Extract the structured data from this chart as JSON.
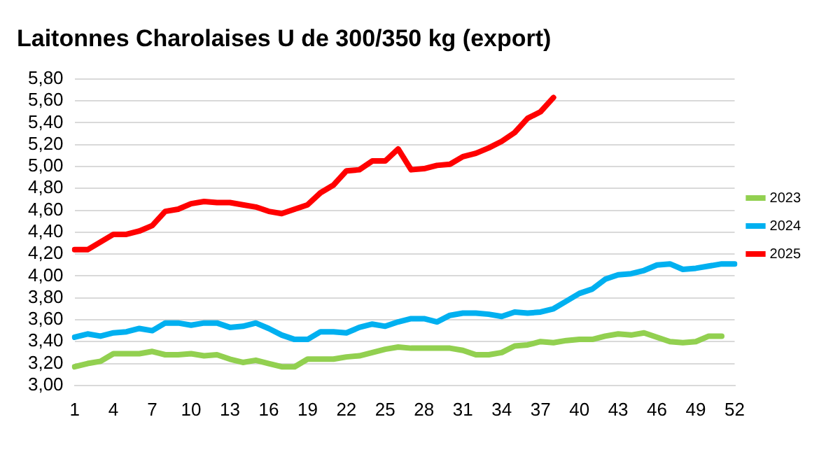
{
  "chart_data": {
    "type": "line",
    "title": "Laitonnes Charolaises U de 300/350 kg (export)",
    "categories": [
      "1",
      null,
      null,
      "4",
      null,
      null,
      "7",
      null,
      null,
      "10",
      null,
      null,
      "13",
      null,
      null,
      "16",
      null,
      null,
      "19",
      null,
      null,
      "22",
      null,
      null,
      "25",
      null,
      null,
      "28",
      null,
      null,
      "31",
      null,
      null,
      "34",
      null,
      null,
      "37",
      null,
      null,
      "40",
      null,
      null,
      "43",
      null,
      null,
      "46",
      null,
      null,
      "49",
      null,
      null,
      "52"
    ],
    "series": [
      {
        "name": "2023",
        "color": "#92d050",
        "values": [
          3.17,
          3.2,
          3.22,
          3.29,
          3.29,
          3.29,
          3.31,
          3.28,
          3.28,
          3.29,
          3.27,
          3.28,
          3.24,
          3.21,
          3.23,
          3.2,
          3.17,
          3.17,
          3.24,
          3.24,
          3.24,
          3.26,
          3.27,
          3.3,
          3.33,
          3.35,
          3.34,
          3.34,
          3.34,
          3.34,
          3.32,
          3.28,
          3.28,
          3.3,
          3.36,
          3.37,
          3.4,
          3.39,
          3.41,
          3.42,
          3.42,
          3.45,
          3.47,
          3.46,
          3.48,
          3.44,
          3.4,
          3.39,
          3.4,
          3.45,
          3.45,
          null
        ]
      },
      {
        "name": "2024",
        "color": "#00b0f0",
        "values": [
          3.44,
          3.47,
          3.45,
          3.48,
          3.49,
          3.52,
          3.5,
          3.57,
          3.57,
          3.55,
          3.57,
          3.57,
          3.53,
          3.54,
          3.57,
          3.52,
          3.46,
          3.42,
          3.42,
          3.49,
          3.49,
          3.48,
          3.53,
          3.56,
          3.54,
          3.58,
          3.61,
          3.61,
          3.58,
          3.64,
          3.66,
          3.66,
          3.65,
          3.63,
          3.67,
          3.66,
          3.67,
          3.7,
          3.77,
          3.84,
          3.88,
          3.97,
          4.01,
          4.02,
          4.05,
          4.1,
          4.11,
          4.06,
          4.07,
          4.09,
          4.11,
          4.11
        ]
      },
      {
        "name": "2025",
        "color": "#ff0000",
        "values": [
          4.24,
          4.24,
          4.31,
          4.38,
          4.38,
          4.41,
          4.46,
          4.59,
          4.61,
          4.66,
          4.68,
          4.67,
          4.67,
          4.65,
          4.63,
          4.59,
          4.57,
          4.61,
          4.65,
          4.76,
          4.83,
          4.96,
          4.97,
          5.05,
          5.05,
          5.16,
          4.97,
          4.98,
          5.01,
          5.02,
          5.09,
          5.12,
          5.17,
          5.23,
          5.31,
          5.44,
          5.5,
          5.63,
          null,
          null,
          null,
          null,
          null,
          null,
          null,
          null,
          null,
          null,
          null,
          null,
          null,
          null
        ]
      }
    ],
    "ylim": [
      3.0,
      5.8
    ],
    "yticks": [
      {
        "value": 3.0,
        "label": "3,00"
      },
      {
        "value": 3.2,
        "label": "3,20"
      },
      {
        "value": 3.4,
        "label": "3,40"
      },
      {
        "value": 3.6,
        "label": "3,60"
      },
      {
        "value": 3.8,
        "label": "3,80"
      },
      {
        "value": 4.0,
        "label": "4,00"
      },
      {
        "value": 4.2,
        "label": "4,20"
      },
      {
        "value": 4.4,
        "label": "4,40"
      },
      {
        "value": 4.6,
        "label": "4,60"
      },
      {
        "value": 4.8,
        "label": "4,80"
      },
      {
        "value": 5.0,
        "label": "5,00"
      },
      {
        "value": 5.2,
        "label": "5,20"
      },
      {
        "value": 5.4,
        "label": "5,40"
      },
      {
        "value": 5.6,
        "label": "5,60"
      },
      {
        "value": 5.8,
        "label": "5,80"
      }
    ],
    "grid": "y",
    "legend": "right",
    "marker": "none",
    "line_style": "solid"
  }
}
